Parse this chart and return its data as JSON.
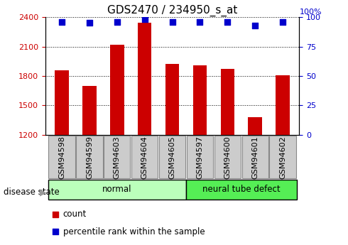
{
  "title": "GDS2470 / 234950_s_at",
  "samples": [
    "GSM94598",
    "GSM94599",
    "GSM94603",
    "GSM94604",
    "GSM94605",
    "GSM94597",
    "GSM94600",
    "GSM94601",
    "GSM94602"
  ],
  "counts": [
    1855,
    1700,
    2120,
    2340,
    1920,
    1910,
    1870,
    1380,
    1810
  ],
  "percentiles": [
    96,
    95,
    96,
    98,
    96,
    96,
    96,
    93,
    96
  ],
  "ylim": [
    1200,
    2400
  ],
  "y2lim": [
    0,
    100
  ],
  "yticks": [
    1200,
    1500,
    1800,
    2100,
    2400
  ],
  "y2ticks": [
    0,
    25,
    50,
    75,
    100
  ],
  "bar_color": "#cc0000",
  "dot_color": "#0000cc",
  "normal_label": "normal",
  "neural_label": "neural tube defect",
  "disease_state_label": "disease state",
  "legend_count": "count",
  "legend_percentile": "percentile rank within the sample",
  "normal_color": "#bbffbb",
  "neural_color": "#55ee55",
  "bar_width": 0.5,
  "dot_size": 35,
  "background_color": "#ffffff",
  "title_fontsize": 11,
  "tick_fontsize": 8,
  "label_fontsize": 8.5
}
